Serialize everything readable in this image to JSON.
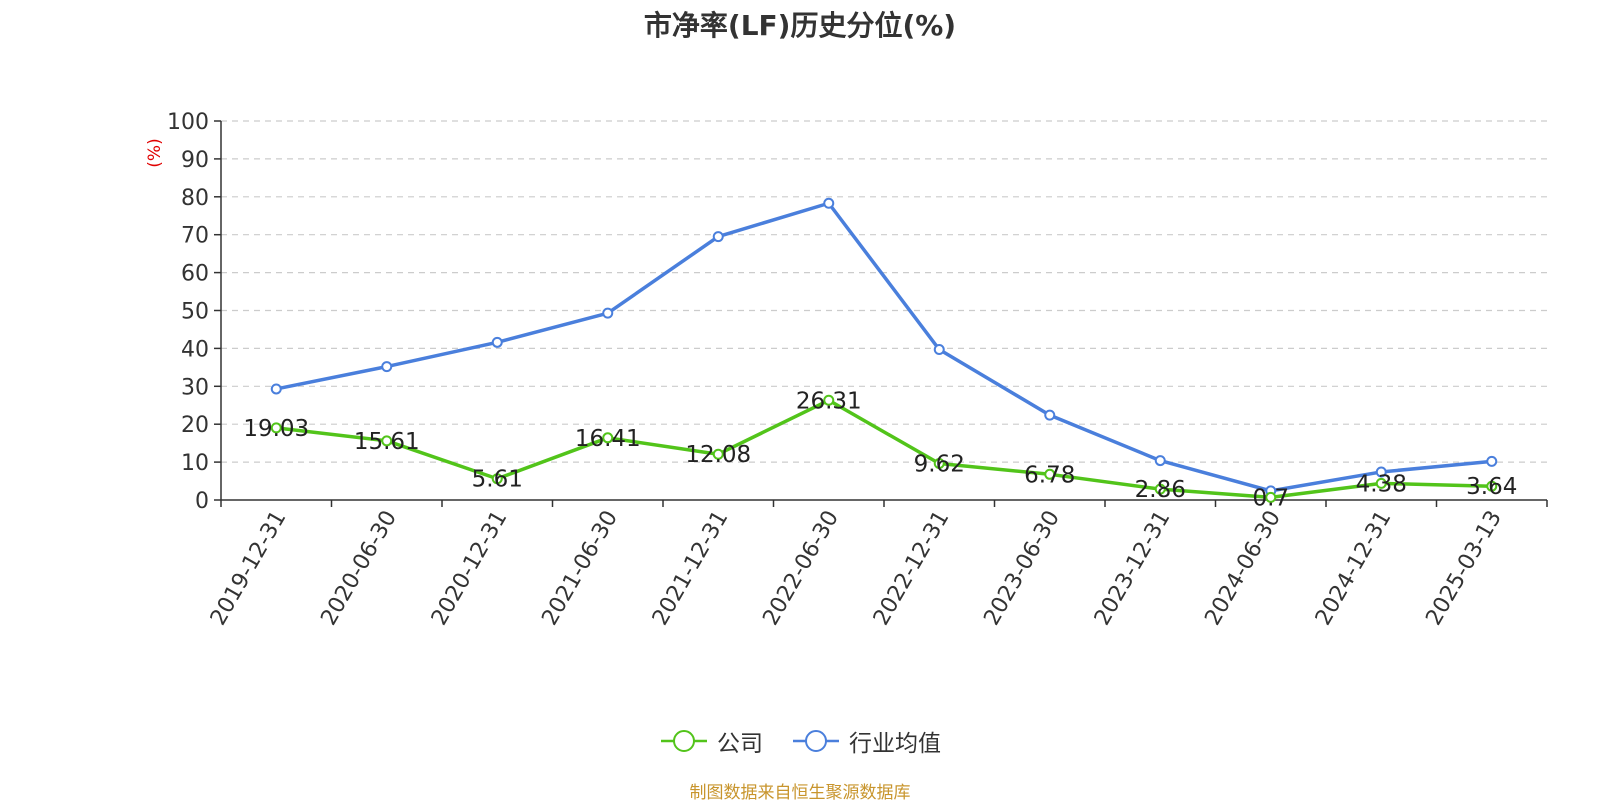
{
  "chart_data": {
    "type": "line",
    "title": "市净率(LF)历史分位(%)",
    "ylabel": "(%)",
    "ylim": [
      0,
      100
    ],
    "yticks": [
      0,
      10,
      20,
      30,
      40,
      50,
      60,
      70,
      80,
      90,
      100
    ],
    "grid": true,
    "legend_position": "bottom",
    "categories": [
      "2019-12-31",
      "2020-06-30",
      "2020-12-31",
      "2021-06-30",
      "2021-12-31",
      "2022-06-30",
      "2022-12-31",
      "2023-06-30",
      "2023-12-31",
      "2024-06-30",
      "2024-12-31",
      "2025-03-13"
    ],
    "series": [
      {
        "name": "公司",
        "color": "#52c41a",
        "values": [
          19.03,
          15.61,
          5.61,
          16.41,
          12.08,
          26.31,
          9.62,
          6.78,
          2.86,
          0.7,
          4.38,
          3.64
        ],
        "labels": [
          "19.03",
          "15.61",
          "5.61",
          "16.41",
          "12.08",
          "26.31",
          "9.62",
          "6.78",
          "2.86",
          "0.7",
          "4.38",
          "3.64"
        ]
      },
      {
        "name": "行业均值",
        "color": "#4a7fdc",
        "values": [
          29.3,
          35.2,
          41.6,
          49.3,
          69.5,
          78.3,
          39.7,
          22.4,
          10.4,
          2.4,
          7.4,
          10.2
        ]
      }
    ]
  },
  "source_note": "制图数据来自恒生聚源数据库",
  "colors": {
    "axis": "#333333",
    "grid": "#cccccc",
    "ylabel": "#e00000",
    "source": "#c8952d"
  }
}
